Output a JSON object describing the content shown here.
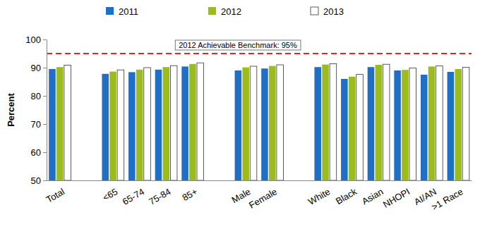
{
  "chart_data": {
    "type": "bar",
    "y_label": "Percent",
    "categories": [
      "Total",
      null,
      "<65",
      "65-74",
      "75-84",
      "85+",
      null,
      "Male",
      "Female",
      null,
      "White",
      "Black",
      "Asian",
      "NHOPI",
      "AI/AN",
      ">1 Race"
    ],
    "series": [
      {
        "name": "2011",
        "color": "#1f6fc6",
        "values": [
          89.5,
          null,
          87.8,
          88.4,
          89.3,
          90.4,
          null,
          89.0,
          89.7,
          null,
          90.2,
          86.0,
          90.2,
          89.0,
          87.5,
          88.5
        ]
      },
      {
        "name": "2012",
        "color": "#9cbb1c",
        "values": [
          90.2,
          null,
          88.6,
          89.3,
          90.2,
          91.3,
          null,
          90.1,
          90.6,
          null,
          91.1,
          86.8,
          91.0,
          89.2,
          90.4,
          89.5
        ]
      },
      {
        "name": "2013",
        "color": "#ffffff",
        "values": [
          90.9,
          null,
          89.2,
          90.0,
          90.7,
          91.7,
          null,
          90.5,
          91.0,
          null,
          91.4,
          87.6,
          91.2,
          89.9,
          90.6,
          90.1
        ]
      }
    ],
    "benchmark": {
      "value": 95,
      "label": "2012 Achievable Benchmark: 95%"
    },
    "ylim": [
      50,
      100
    ],
    "yticks": [
      50,
      60,
      70,
      80,
      90,
      100
    ],
    "grid": false,
    "legend": "top"
  }
}
